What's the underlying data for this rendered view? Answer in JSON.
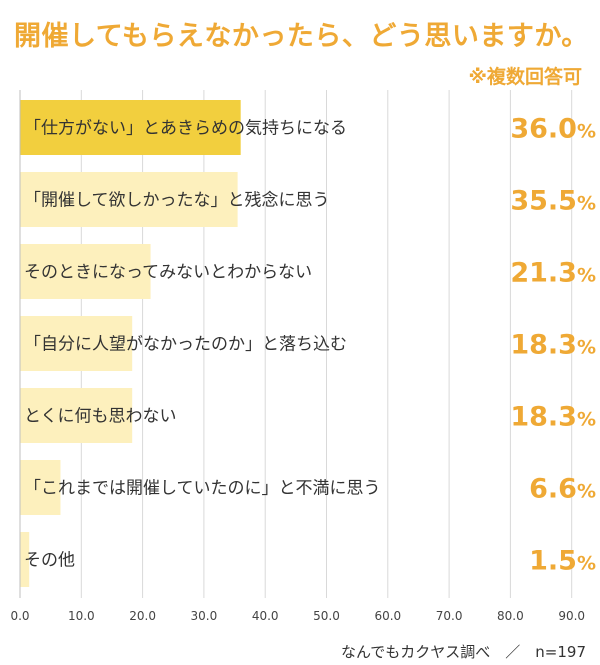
{
  "header": {
    "title": "開催してもらえなかったら、どう思いますか。",
    "note": "※複数回答可"
  },
  "footer": {
    "source": "なんでもカクヤス調べ　／　n=197"
  },
  "colors": {
    "accent": "#efa935",
    "bar_top": "#f2cf3e",
    "bar": "#fdf0bd",
    "grid": "#d9d9d9",
    "value_text": "#efa935"
  },
  "chart_data": {
    "type": "bar",
    "orientation": "horizontal",
    "categories": [
      "「仕方がない」とあきらめの気持ちになる",
      "「開催して欲しかったな」と残念に思う",
      "そのときになってみないとわからない",
      "「自分に人望がなかったのか」と落ち込む",
      "とくに何も思わない",
      "「これまでは開催していたのに」と不満に思う",
      "その他"
    ],
    "values": [
      36.0,
      35.5,
      21.3,
      18.3,
      18.3,
      6.6,
      1.5
    ],
    "value_labels": [
      "36.0",
      "35.5",
      "21.3",
      "18.3",
      "18.3",
      "6.6",
      "1.5"
    ],
    "value_unit": "%",
    "x_ticks": [
      "0.0",
      "10.0",
      "20.0",
      "30.0",
      "40.0",
      "50.0",
      "60.0",
      "70.0",
      "80.0",
      "90.0"
    ],
    "xlim": [
      0,
      90
    ],
    "grid": true,
    "highlight_first": true
  }
}
